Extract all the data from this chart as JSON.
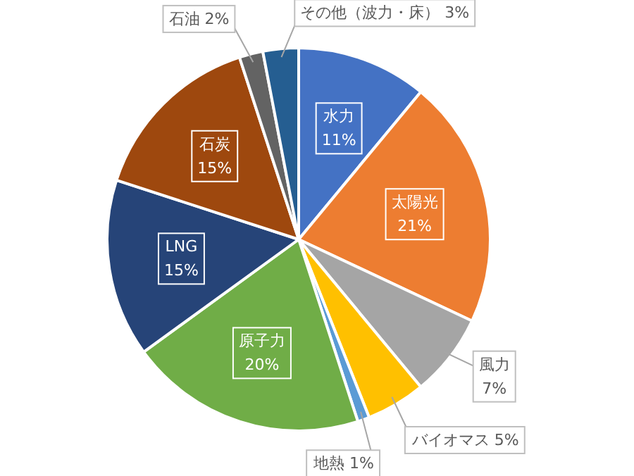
{
  "chart_data": {
    "type": "pie",
    "categories": [
      "水力",
      "太陽光",
      "風力",
      "バイオマス",
      "地熱",
      "原子力",
      "LNG",
      "石炭",
      "石油",
      "その他（波力・床）"
    ],
    "values": [
      11,
      21,
      7,
      5,
      1,
      20,
      15,
      15,
      2,
      3
    ],
    "value_labels": [
      "11%",
      "21%",
      "7%",
      "5%",
      "1%",
      "20%",
      "15%",
      "15%",
      "2%",
      "3%"
    ],
    "colors": [
      "#4472c4",
      "#ed7d31",
      "#a5a5a5",
      "#ffc000",
      "#5b9bd5",
      "#70ad47",
      "#264478",
      "#9e480e",
      "#636363",
      "#255e91"
    ]
  }
}
